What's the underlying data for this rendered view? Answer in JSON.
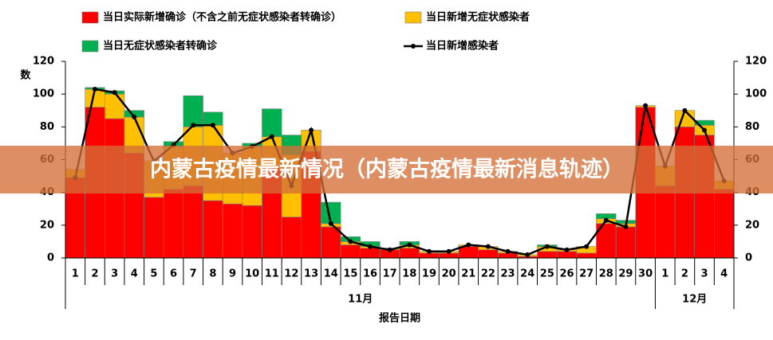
{
  "chart_data": {
    "type": "stacked_bar_line",
    "x_label": "报告日期",
    "y_label": "数",
    "categories": [
      "1",
      "2",
      "3",
      "4",
      "5",
      "6",
      "7",
      "8",
      "9",
      "10",
      "11",
      "12",
      "13",
      "14",
      "15",
      "16",
      "17",
      "18",
      "19",
      "20",
      "21",
      "22",
      "23",
      "24",
      "25",
      "26",
      "27",
      "28",
      "29",
      "30",
      "1",
      "2",
      "3",
      "4"
    ],
    "category_groups": [
      {
        "label": "11月",
        "count": 30
      },
      {
        "label": "12月",
        "count": 4
      }
    ],
    "series": [
      {
        "name": "当日实际新增确诊（不含之前无症状感染者转确诊）",
        "color": "#ff0000",
        "kind": "bar",
        "values": [
          49,
          92,
          85,
          64,
          37,
          42,
          44,
          35,
          33,
          32,
          55,
          25,
          65,
          19,
          8,
          6,
          5,
          6,
          3,
          3,
          7,
          5,
          3,
          1,
          4,
          4,
          3,
          21,
          19,
          92,
          44,
          80,
          75,
          42
        ]
      },
      {
        "name": "当日新增无症状感染者",
        "color": "#ffc000",
        "kind": "bar",
        "values": [
          5,
          11,
          15,
          22,
          22,
          26,
          36,
          46,
          31,
          36,
          19,
          38,
          13,
          2,
          2,
          1,
          1,
          2,
          1,
          1,
          1,
          2,
          1,
          1,
          3,
          1,
          4,
          3,
          2,
          1,
          12,
          10,
          6,
          5
        ]
      },
      {
        "name": "当日无症状感染者转确诊",
        "color": "#00b050",
        "kind": "bar",
        "values": [
          0,
          1,
          2,
          4,
          0,
          3,
          19,
          8,
          0,
          2,
          17,
          12,
          0,
          13,
          3,
          3,
          0,
          2,
          0,
          0,
          0,
          0,
          0,
          0,
          1,
          0,
          0,
          3,
          2,
          0,
          0,
          0,
          3,
          0
        ]
      },
      {
        "name": "当日新增感染者",
        "color": "#000000",
        "kind": "line",
        "axis": "y2",
        "values": [
          49,
          103,
          101,
          86,
          59,
          69,
          81,
          81,
          64,
          68,
          74,
          44,
          78,
          21,
          10,
          7,
          5,
          8,
          4,
          4,
          8,
          7,
          4,
          2,
          7,
          5,
          7,
          23,
          19,
          93,
          56,
          90,
          78,
          47
        ]
      }
    ],
    "ylim": [
      0,
      120
    ],
    "yticks": [
      0,
      20,
      40,
      60,
      80,
      100,
      120
    ],
    "y2lim": [
      0,
      120
    ],
    "y2ticks": [
      0,
      20,
      40,
      60,
      80,
      100,
      120
    ],
    "legend": "top"
  },
  "overlay": {
    "caption": "内蒙古疫情最新情况（内蒙古疫情最新消息轨迹）"
  }
}
